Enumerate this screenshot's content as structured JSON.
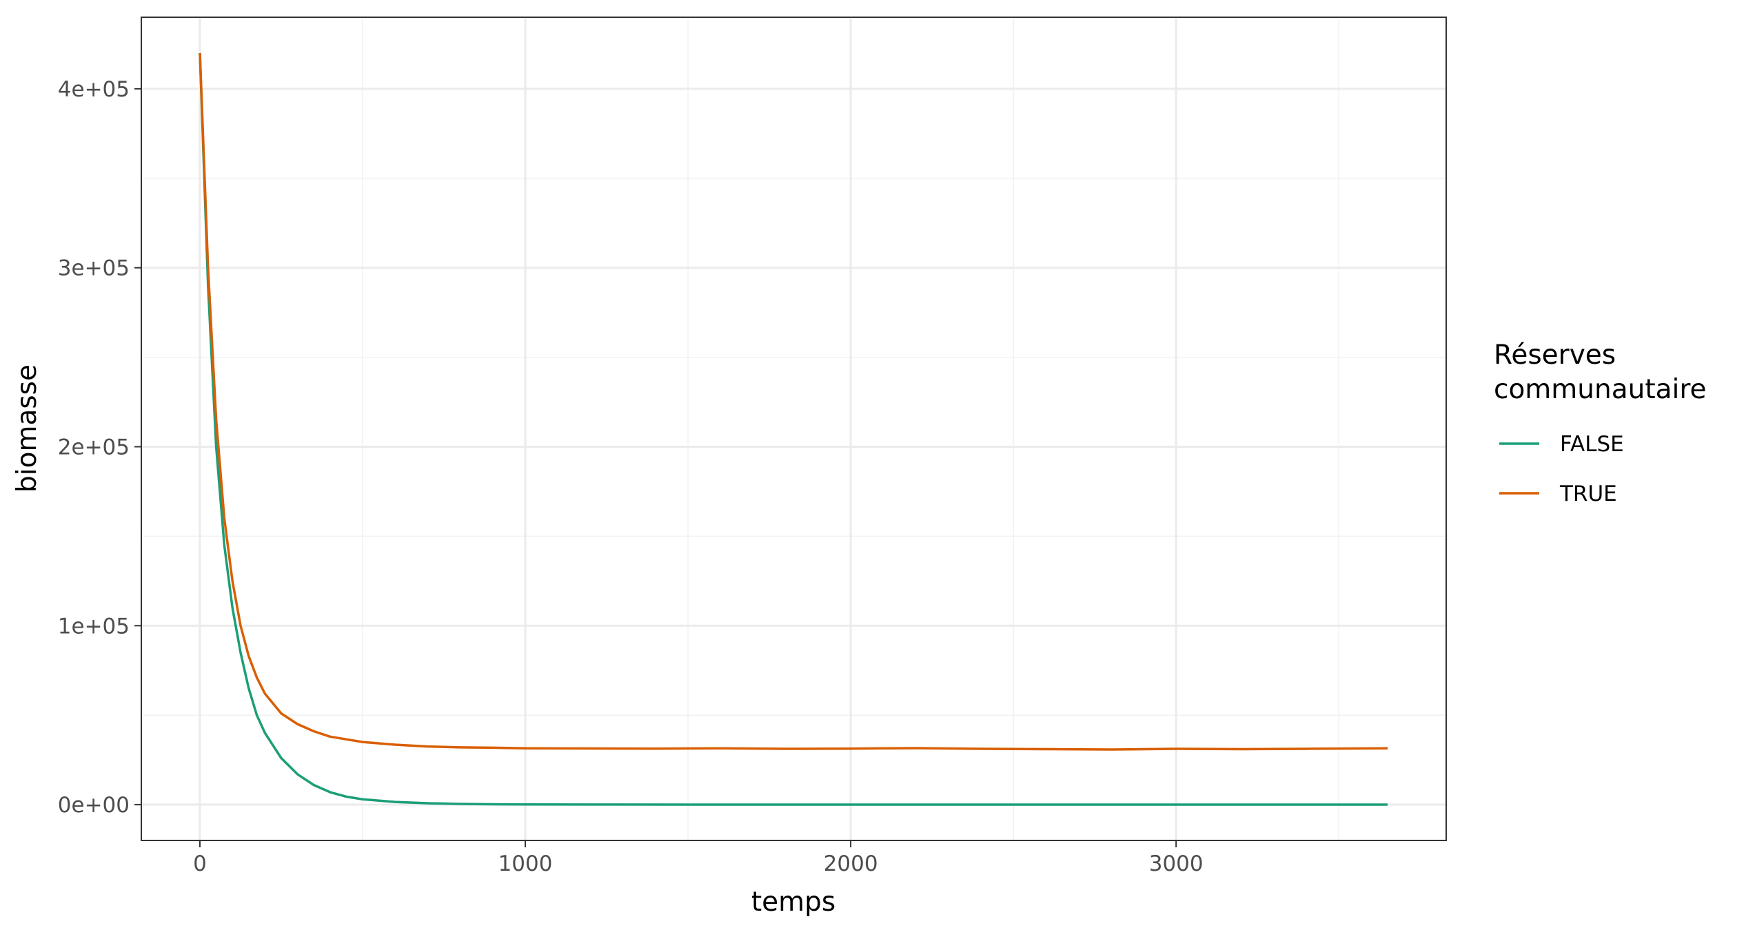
{
  "chart_data": {
    "type": "line",
    "title": "",
    "xlabel": "temps",
    "ylabel": "biomasse",
    "xlim": [
      -180,
      3830
    ],
    "ylim": [
      -20000,
      440000
    ],
    "x_ticks": [
      {
        "value": 0,
        "label": "0"
      },
      {
        "value": 1000,
        "label": "1000"
      },
      {
        "value": 2000,
        "label": "2000"
      },
      {
        "value": 3000,
        "label": "3000"
      }
    ],
    "x_minor_ticks": [
      500,
      1500,
      2500,
      3500
    ],
    "y_ticks": [
      {
        "value": 0,
        "label": "0e+00"
      },
      {
        "value": 100000,
        "label": "1e+05"
      },
      {
        "value": 200000,
        "label": "2e+05"
      },
      {
        "value": 300000,
        "label": "3e+05"
      },
      {
        "value": 400000,
        "label": "4e+05"
      }
    ],
    "y_minor_ticks": [
      50000,
      150000,
      250000,
      350000
    ],
    "grid": true,
    "legend": {
      "title_lines": [
        "Réserves",
        "communautaire"
      ],
      "position": "right"
    },
    "series": [
      {
        "name": "FALSE",
        "color": "#1b9e77",
        "x": [
          0,
          25,
          50,
          75,
          100,
          125,
          150,
          175,
          200,
          250,
          300,
          350,
          400,
          450,
          500,
          600,
          700,
          800,
          900,
          1000,
          1200,
          1500,
          2000,
          2500,
          3000,
          3650
        ],
        "y": [
          420000,
          290000,
          200000,
          145000,
          110000,
          85000,
          65000,
          50000,
          40000,
          26000,
          17000,
          11000,
          7000,
          4500,
          3000,
          1500,
          800,
          400,
          200,
          100,
          50,
          20,
          10,
          5,
          2,
          0
        ]
      },
      {
        "name": "TRUE",
        "color": "#d95f02",
        "x": [
          0,
          25,
          50,
          75,
          100,
          125,
          150,
          175,
          200,
          250,
          300,
          350,
          400,
          450,
          500,
          600,
          700,
          800,
          900,
          1000,
          1200,
          1400,
          1600,
          1800,
          2000,
          2200,
          2400,
          2600,
          2800,
          3000,
          3200,
          3400,
          3650
        ],
        "y": [
          420000,
          300000,
          215000,
          160000,
          125000,
          100000,
          83000,
          71000,
          62000,
          51000,
          45000,
          41000,
          38000,
          36500,
          35000,
          33500,
          32500,
          32000,
          31800,
          31500,
          31400,
          31300,
          31500,
          31200,
          31300,
          31600,
          31200,
          31000,
          30800,
          31200,
          31000,
          31200,
          31500
        ]
      }
    ]
  }
}
